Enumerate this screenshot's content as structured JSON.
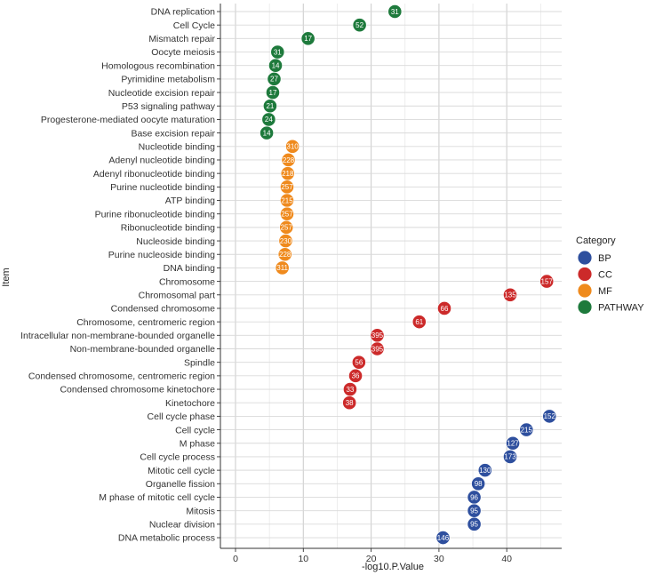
{
  "chart_data": {
    "type": "scatter",
    "title": "",
    "xlabel": "-log10.P.Value",
    "ylabel": "Item",
    "xlim": [
      -2,
      48
    ],
    "xticks": [
      0,
      10,
      20,
      30,
      40
    ],
    "legend": {
      "title": "Category",
      "placement": "right",
      "entries": [
        {
          "name": "BP",
          "color": "#2e4f9e"
        },
        {
          "name": "CC",
          "color": "#cc2a2a"
        },
        {
          "name": "MF",
          "color": "#ef8a1d"
        },
        {
          "name": "PATHWAY",
          "color": "#1e7a3c"
        }
      ]
    },
    "points": [
      {
        "item": "DNA replication",
        "x": 23.5,
        "count": "31",
        "category": "PATHWAY"
      },
      {
        "item": "Cell Cycle",
        "x": 18.3,
        "count": "52",
        "category": "PATHWAY"
      },
      {
        "item": "Mismatch repair",
        "x": 10.7,
        "count": "17",
        "category": "PATHWAY"
      },
      {
        "item": "Oocyte meiosis",
        "x": 6.2,
        "count": "31",
        "category": "PATHWAY"
      },
      {
        "item": "Homologous recombination",
        "x": 5.9,
        "count": "14",
        "category": "PATHWAY"
      },
      {
        "item": "Pyrimidine metabolism",
        "x": 5.7,
        "count": "27",
        "category": "PATHWAY"
      },
      {
        "item": "Nucleotide excision repair",
        "x": 5.5,
        "count": "17",
        "category": "PATHWAY"
      },
      {
        "item": "P53 signaling pathway",
        "x": 5.1,
        "count": "21",
        "category": "PATHWAY"
      },
      {
        "item": "Progesterone-mediated oocyte maturation",
        "x": 4.9,
        "count": "24",
        "category": "PATHWAY"
      },
      {
        "item": "Base excision repair",
        "x": 4.6,
        "count": "14",
        "category": "PATHWAY"
      },
      {
        "item": "Nucleotide binding",
        "x": 8.4,
        "count": "310",
        "category": "MF"
      },
      {
        "item": "Adenyl nucleotide binding",
        "x": 7.8,
        "count": "228",
        "category": "MF"
      },
      {
        "item": "Adenyl ribonucleotide binding",
        "x": 7.7,
        "count": "218",
        "category": "MF"
      },
      {
        "item": "Purine nucleotide binding",
        "x": 7.6,
        "count": "257",
        "category": "MF"
      },
      {
        "item": "ATP binding",
        "x": 7.6,
        "count": "215",
        "category": "MF"
      },
      {
        "item": "Purine ribonucleotide binding",
        "x": 7.6,
        "count": "257",
        "category": "MF"
      },
      {
        "item": "Ribonucleotide binding",
        "x": 7.5,
        "count": "257",
        "category": "MF"
      },
      {
        "item": "Nucleoside binding",
        "x": 7.4,
        "count": "230",
        "category": "MF"
      },
      {
        "item": "Purine nucleoside binding",
        "x": 7.3,
        "count": "228",
        "category": "MF"
      },
      {
        "item": "DNA binding",
        "x": 6.9,
        "count": "311",
        "category": "MF"
      },
      {
        "item": "Chromosome",
        "x": 45.9,
        "count": "157",
        "category": "CC"
      },
      {
        "item": "Chromosomal part",
        "x": 40.5,
        "count": "135",
        "category": "CC"
      },
      {
        "item": "Condensed chromosome",
        "x": 30.8,
        "count": "66",
        "category": "CC"
      },
      {
        "item": "Chromosome, centromeric region",
        "x": 27.1,
        "count": "61",
        "category": "CC"
      },
      {
        "item": "Intracellular non-membrane-bounded organelle",
        "x": 20.9,
        "count": "395",
        "category": "CC"
      },
      {
        "item": "Non-membrane-bounded organelle",
        "x": 20.9,
        "count": "395",
        "category": "CC"
      },
      {
        "item": "Spindle",
        "x": 18.2,
        "count": "56",
        "category": "CC"
      },
      {
        "item": "Condensed chromosome, centromeric region",
        "x": 17.7,
        "count": "36",
        "category": "CC"
      },
      {
        "item": "Condensed chromosome kinetochore",
        "x": 16.9,
        "count": "33",
        "category": "CC"
      },
      {
        "item": "Kinetochore",
        "x": 16.8,
        "count": "38",
        "category": "CC"
      },
      {
        "item": "Cell cycle phase",
        "x": 46.3,
        "count": "152",
        "category": "BP"
      },
      {
        "item": "Cell cycle",
        "x": 42.9,
        "count": "215",
        "category": "BP"
      },
      {
        "item": "M phase",
        "x": 40.9,
        "count": "127",
        "category": "BP"
      },
      {
        "item": "Cell cycle process",
        "x": 40.5,
        "count": "173",
        "category": "BP"
      },
      {
        "item": "Mitotic cell cycle",
        "x": 36.8,
        "count": "130",
        "category": "BP"
      },
      {
        "item": "Organelle fission",
        "x": 35.8,
        "count": "98",
        "category": "BP"
      },
      {
        "item": "M phase of mitotic cell cycle",
        "x": 35.2,
        "count": "96",
        "category": "BP"
      },
      {
        "item": "Mitosis",
        "x": 35.2,
        "count": "95",
        "category": "BP"
      },
      {
        "item": "Nuclear division",
        "x": 35.2,
        "count": "95",
        "category": "BP"
      },
      {
        "item": "DNA metabolic process",
        "x": 30.6,
        "count": "146",
        "category": "BP"
      }
    ]
  }
}
